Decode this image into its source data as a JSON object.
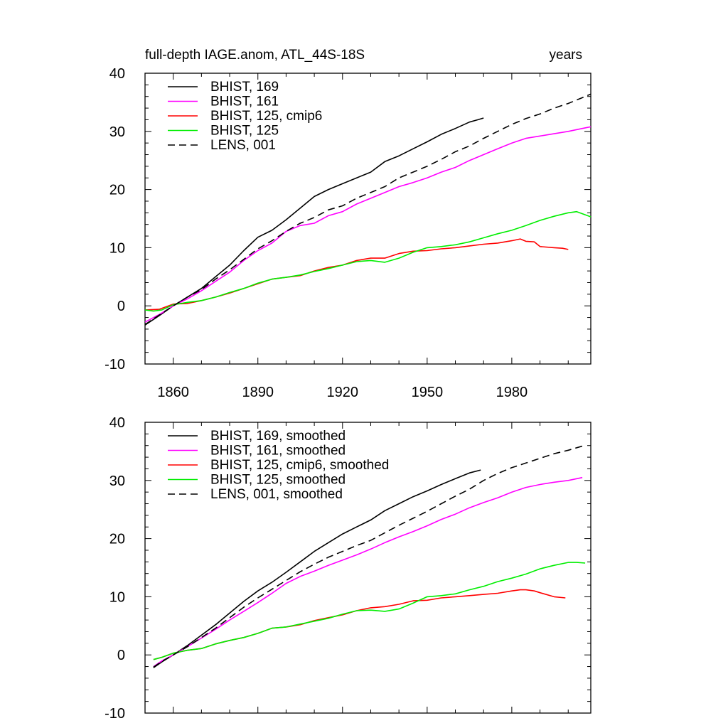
{
  "chart_data": [
    {
      "type": "line",
      "title": "full-depth IAGE.anom, ATL_44S-18S",
      "units": "years",
      "xlim": [
        1850,
        2008
      ],
      "ylim": [
        -10,
        40
      ],
      "xticks": [
        1860,
        1890,
        1920,
        1950,
        1980
      ],
      "xtick_labels": [
        "1860",
        "1890",
        "1920",
        "1950",
        "1980"
      ],
      "yticks": [
        -10,
        0,
        10,
        20,
        30,
        40
      ],
      "ytick_labels": [
        "-10",
        "0",
        "10",
        "20",
        "30",
        "40"
      ],
      "legend_position": "top-left",
      "series": [
        {
          "name": "BHIST, 169",
          "color": "#000000",
          "dashed": false,
          "x": [
            1850,
            1855,
            1860,
            1865,
            1870,
            1875,
            1880,
            1885,
            1890,
            1895,
            1900,
            1905,
            1910,
            1915,
            1920,
            1925,
            1930,
            1935,
            1940,
            1945,
            1950,
            1955,
            1960,
            1965,
            1968,
            1970
          ],
          "y": [
            -3.3,
            -1.7,
            0.0,
            1.5,
            3.0,
            5.0,
            7.0,
            9.5,
            11.8,
            13.0,
            14.8,
            16.8,
            18.8,
            20.0,
            21.0,
            22.0,
            23.0,
            24.8,
            25.8,
            27.0,
            28.2,
            29.5,
            30.5,
            31.6,
            32.0,
            32.3
          ]
        },
        {
          "name": "BHIST, 161",
          "color": "#ff00ff",
          "dashed": false,
          "x": [
            1850,
            1855,
            1860,
            1865,
            1870,
            1875,
            1880,
            1885,
            1890,
            1895,
            1900,
            1905,
            1910,
            1915,
            1920,
            1925,
            1930,
            1935,
            1940,
            1945,
            1950,
            1955,
            1960,
            1965,
            1970,
            1975,
            1980,
            1985,
            1990,
            1995,
            2000,
            2005,
            2008
          ],
          "y": [
            -2.8,
            -1.5,
            0.0,
            1.2,
            2.6,
            4.2,
            5.8,
            7.8,
            9.5,
            10.8,
            12.8,
            13.8,
            14.2,
            15.5,
            16.2,
            17.5,
            18.5,
            19.5,
            20.5,
            21.2,
            22.0,
            23.0,
            23.8,
            25.0,
            26.0,
            27.0,
            28.0,
            28.8,
            29.2,
            29.6,
            30.0,
            30.5,
            30.8
          ]
        },
        {
          "name": "BHIST, 125, cmip6",
          "color": "#ff0000",
          "dashed": false,
          "x": [
            1850,
            1855,
            1860,
            1865,
            1870,
            1875,
            1880,
            1885,
            1890,
            1895,
            1900,
            1905,
            1910,
            1915,
            1920,
            1925,
            1930,
            1935,
            1940,
            1945,
            1950,
            1955,
            1960,
            1965,
            1970,
            1975,
            1980,
            1983,
            1985,
            1988,
            1990,
            1995,
            1998,
            2000
          ],
          "y": [
            -0.7,
            -0.6,
            0.3,
            0.4,
            0.9,
            1.5,
            2.2,
            3.0,
            3.8,
            4.6,
            4.9,
            5.2,
            6.0,
            6.6,
            7.0,
            7.8,
            8.2,
            8.2,
            9.0,
            9.4,
            9.5,
            9.8,
            10.0,
            10.3,
            10.6,
            10.8,
            11.2,
            11.5,
            11.1,
            11.0,
            10.2,
            10.0,
            9.9,
            9.7
          ]
        },
        {
          "name": "BHIST, 125",
          "color": "#00ee00",
          "dashed": false,
          "x": [
            1850,
            1853,
            1856,
            1860,
            1865,
            1870,
            1875,
            1880,
            1885,
            1890,
            1895,
            1900,
            1905,
            1910,
            1915,
            1920,
            1925,
            1930,
            1935,
            1940,
            1945,
            1950,
            1955,
            1960,
            1965,
            1970,
            1975,
            1980,
            1985,
            1990,
            1995,
            2000,
            2003,
            2008
          ],
          "y": [
            -0.7,
            -0.9,
            -0.7,
            0.2,
            0.6,
            0.9,
            1.5,
            2.3,
            3.0,
            3.9,
            4.6,
            4.9,
            5.3,
            5.9,
            6.4,
            7.0,
            7.6,
            7.8,
            7.5,
            8.2,
            9.2,
            10.0,
            10.2,
            10.5,
            11.0,
            11.7,
            12.4,
            13.0,
            13.8,
            14.7,
            15.4,
            16.0,
            16.2,
            15.3
          ]
        },
        {
          "name": "LENS, 001",
          "color": "#000000",
          "dashed": true,
          "x": [
            1850,
            1855,
            1860,
            1865,
            1870,
            1875,
            1880,
            1885,
            1890,
            1895,
            1900,
            1905,
            1910,
            1915,
            1920,
            1925,
            1930,
            1935,
            1940,
            1945,
            1950,
            1955,
            1960,
            1965,
            1970,
            1975,
            1980,
            1985,
            1990,
            1995,
            2000,
            2005,
            2008
          ],
          "y": [
            -3.2,
            -1.6,
            0.0,
            1.5,
            2.8,
            4.6,
            6.2,
            8.0,
            9.8,
            11.2,
            12.8,
            14.2,
            15.2,
            16.5,
            17.2,
            18.5,
            19.5,
            20.5,
            22.0,
            23.0,
            24.0,
            25.2,
            26.5,
            27.5,
            28.8,
            30.0,
            31.2,
            32.2,
            33.0,
            34.0,
            34.8,
            35.8,
            36.4
          ]
        }
      ]
    },
    {
      "type": "line",
      "title": "",
      "units": "",
      "xlim": [
        1850,
        2008
      ],
      "ylim": [
        -10,
        40
      ],
      "xticks": [
        1860,
        1890,
        1920,
        1950,
        1980
      ],
      "xtick_labels": [],
      "yticks": [
        -10,
        0,
        10,
        20,
        30,
        40
      ],
      "ytick_labels": [
        "-10",
        "0",
        "10",
        "20",
        "30",
        "40"
      ],
      "legend_position": "top-left",
      "series": [
        {
          "name": "BHIST, 169, smoothed",
          "color": "#000000",
          "dashed": false,
          "x": [
            1853,
            1856,
            1860,
            1865,
            1870,
            1875,
            1880,
            1885,
            1890,
            1895,
            1900,
            1905,
            1910,
            1915,
            1920,
            1925,
            1930,
            1935,
            1940,
            1945,
            1950,
            1955,
            1960,
            1965,
            1969
          ],
          "y": [
            -2.2,
            -1.2,
            0.0,
            1.6,
            3.4,
            5.2,
            7.2,
            9.2,
            11.0,
            12.5,
            14.2,
            16.0,
            17.8,
            19.3,
            20.8,
            22.0,
            23.2,
            24.8,
            26.0,
            27.2,
            28.2,
            29.3,
            30.3,
            31.3,
            31.8
          ]
        },
        {
          "name": "BHIST, 161, smoothed",
          "color": "#ff00ff",
          "dashed": false,
          "x": [
            1853,
            1856,
            1860,
            1865,
            1870,
            1875,
            1880,
            1885,
            1890,
            1895,
            1900,
            1905,
            1910,
            1915,
            1920,
            1925,
            1930,
            1935,
            1940,
            1945,
            1950,
            1955,
            1960,
            1965,
            1970,
            1975,
            1980,
            1985,
            1990,
            1995,
            2000,
            2005
          ],
          "y": [
            -2.0,
            -1.0,
            0.0,
            1.4,
            2.9,
            4.4,
            6.0,
            7.5,
            9.0,
            10.6,
            12.3,
            13.5,
            14.4,
            15.4,
            16.3,
            17.2,
            18.2,
            19.3,
            20.3,
            21.2,
            22.2,
            23.3,
            24.2,
            25.3,
            26.2,
            27.0,
            28.0,
            28.8,
            29.3,
            29.7,
            30.0,
            30.5
          ]
        },
        {
          "name": "BHIST, 125, cmip6, smoothed",
          "color": "#ff0000",
          "dashed": false,
          "x": [
            1853,
            1856,
            1860,
            1865,
            1870,
            1875,
            1880,
            1885,
            1890,
            1895,
            1900,
            1905,
            1910,
            1915,
            1920,
            1925,
            1930,
            1935,
            1940,
            1945,
            1950,
            1955,
            1960,
            1965,
            1970,
            1975,
            1980,
            1983,
            1985,
            1988,
            1990,
            1995,
            1999
          ],
          "y": [
            -0.8,
            -0.4,
            0.3,
            0.8,
            1.1,
            1.9,
            2.5,
            3.0,
            3.7,
            4.6,
            4.8,
            5.2,
            5.9,
            6.4,
            6.9,
            7.6,
            8.1,
            8.3,
            8.7,
            9.3,
            9.4,
            9.8,
            10.0,
            10.2,
            10.4,
            10.6,
            11.0,
            11.2,
            11.2,
            11.0,
            10.7,
            10.0,
            9.8
          ]
        },
        {
          "name": "BHIST, 125, smoothed",
          "color": "#00ee00",
          "dashed": false,
          "x": [
            1853,
            1856,
            1860,
            1865,
            1870,
            1875,
            1880,
            1885,
            1890,
            1895,
            1900,
            1905,
            1910,
            1915,
            1920,
            1925,
            1930,
            1935,
            1940,
            1945,
            1950,
            1955,
            1960,
            1965,
            1970,
            1975,
            1980,
            1985,
            1990,
            1995,
            2000,
            2003,
            2006
          ],
          "y": [
            -0.8,
            -0.4,
            0.3,
            0.8,
            1.1,
            1.9,
            2.5,
            3.0,
            3.7,
            4.6,
            4.8,
            5.3,
            5.8,
            6.3,
            7.0,
            7.6,
            7.7,
            7.5,
            7.9,
            8.9,
            10.0,
            10.2,
            10.5,
            11.2,
            11.8,
            12.6,
            13.2,
            13.9,
            14.8,
            15.4,
            15.9,
            15.9,
            15.8
          ]
        },
        {
          "name": "LENS, 001, smoothed",
          "color": "#000000",
          "dashed": true,
          "x": [
            1853,
            1856,
            1860,
            1865,
            1870,
            1875,
            1880,
            1885,
            1890,
            1895,
            1900,
            1905,
            1910,
            1915,
            1920,
            1925,
            1930,
            1935,
            1940,
            1945,
            1950,
            1955,
            1960,
            1965,
            1970,
            1975,
            1980,
            1985,
            1990,
            1995,
            2000,
            2005
          ],
          "y": [
            -2.1,
            -1.1,
            0.0,
            1.4,
            3.0,
            4.6,
            6.4,
            8.2,
            9.8,
            11.3,
            12.8,
            14.3,
            15.6,
            16.8,
            17.8,
            18.8,
            19.7,
            21.0,
            22.3,
            23.5,
            24.7,
            26.0,
            27.3,
            28.5,
            30.0,
            31.2,
            32.2,
            33.0,
            33.8,
            34.6,
            35.2,
            35.9
          ]
        }
      ]
    }
  ]
}
